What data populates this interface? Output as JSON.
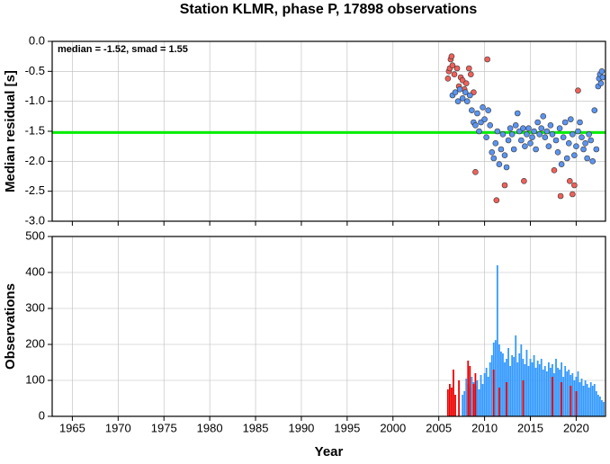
{
  "chart_data": [
    {
      "type": "scatter",
      "title": "Station KLMR, phase P, 17898 observations",
      "y_label": "Median residual [s]",
      "annotation": "median = -1.52, smad = 1.55",
      "median_line": -1.52,
      "median_color": "#00ee00",
      "xlim": [
        1962.8,
        2023.2
      ],
      "xticks": [
        1965,
        1970,
        1975,
        1980,
        1985,
        1990,
        1995,
        2000,
        2005,
        2010,
        2015,
        2020
      ],
      "ylim": [
        -3.0,
        0.0
      ],
      "yticks": [
        {
          "value": 0,
          "label": "0.0"
        },
        -0.5,
        {
          "value": -1,
          "label": "-1.0"
        },
        -1.5,
        {
          "value": -2,
          "label": "-2.0"
        },
        -2.5,
        {
          "value": -3,
          "label": "-3.0"
        }
      ],
      "grid": true,
      "series": [
        {
          "color": "#f0605a",
          "x": [
            2006.0,
            2006.1,
            2006.2,
            2006.3,
            2006.4,
            2006.5,
            2006.7,
            2007.0,
            2007.2,
            2007.4,
            2007.6,
            2007.8,
            2008.0,
            2008.3,
            2008.5,
            2008.8,
            2009.0,
            2010.3,
            2011.3,
            2012.2,
            2014.3,
            2017.6,
            2018.3,
            2019.3,
            2019.6,
            2019.8,
            2020.2
          ],
          "values": [
            -0.62,
            -0.5,
            -0.45,
            -0.3,
            -0.25,
            -0.4,
            -0.55,
            -0.45,
            -0.75,
            -0.6,
            -0.65,
            -0.8,
            -0.7,
            -0.45,
            -0.55,
            -0.85,
            -2.18,
            -0.3,
            -2.65,
            -2.4,
            -2.33,
            -2.15,
            -2.58,
            -2.33,
            -2.55,
            -2.4,
            -0.82
          ]
        },
        {
          "color": "#5b94f0",
          "x": [
            2006.5,
            2006.8,
            2007.1,
            2007.3,
            2007.6,
            2007.9,
            2008.1,
            2008.4,
            2008.6,
            2008.8,
            2009.0,
            2009.2,
            2009.4,
            2009.6,
            2009.8,
            2010.0,
            2010.2,
            2010.4,
            2010.6,
            2010.8,
            2011.0,
            2011.2,
            2011.4,
            2011.6,
            2011.8,
            2012.0,
            2012.2,
            2012.4,
            2012.6,
            2012.8,
            2013.0,
            2013.2,
            2013.4,
            2013.6,
            2013.8,
            2014.0,
            2014.2,
            2014.4,
            2014.6,
            2014.8,
            2015.0,
            2015.2,
            2015.4,
            2015.6,
            2015.8,
            2016.0,
            2016.2,
            2016.4,
            2016.6,
            2016.8,
            2017.0,
            2017.2,
            2017.4,
            2017.8,
            2018.0,
            2018.2,
            2018.4,
            2018.6,
            2018.8,
            2019.0,
            2019.2,
            2019.4,
            2019.6,
            2019.8,
            2020.0,
            2020.2,
            2020.4,
            2020.6,
            2020.8,
            2021.0,
            2021.2,
            2021.4,
            2021.6,
            2021.8,
            2022.0,
            2022.2,
            2022.4,
            2022.5,
            2022.6,
            2022.7,
            2022.8,
            2022.9
          ],
          "values": [
            -0.9,
            -0.85,
            -1.0,
            -0.8,
            -0.95,
            -0.85,
            -1.0,
            -0.9,
            -1.15,
            -1.35,
            -1.4,
            -1.2,
            -1.5,
            -1.35,
            -1.1,
            -1.3,
            -1.6,
            -1.15,
            -1.4,
            -1.85,
            -1.95,
            -1.7,
            -1.5,
            -2.05,
            -1.8,
            -1.55,
            -1.9,
            -2.1,
            -1.65,
            -1.45,
            -1.55,
            -1.8,
            -1.4,
            -1.2,
            -1.5,
            -1.65,
            -1.45,
            -1.75,
            -1.55,
            -1.45,
            -1.7,
            -1.6,
            -1.5,
            -1.8,
            -1.35,
            -1.55,
            -1.45,
            -1.25,
            -1.6,
            -1.5,
            -1.75,
            -1.4,
            -1.55,
            -1.65,
            -1.85,
            -1.45,
            -2.05,
            -1.6,
            -1.35,
            -1.95,
            -1.7,
            -1.3,
            -1.55,
            -1.9,
            -1.75,
            -1.5,
            -1.35,
            -1.6,
            -1.8,
            -1.7,
            -1.95,
            -1.55,
            -1.65,
            -2.0,
            -1.15,
            -1.8,
            -0.75,
            -0.62,
            -0.55,
            -0.7,
            -0.5,
            -0.6
          ]
        }
      ]
    },
    {
      "type": "bar",
      "y_label": "Observations",
      "x_label": "Year",
      "xlim": [
        1962.8,
        2023.2
      ],
      "xticks": [
        1965,
        1970,
        1975,
        1980,
        1985,
        1990,
        1995,
        2000,
        2005,
        2010,
        2015,
        2020
      ],
      "ylim": [
        0,
        500
      ],
      "yticks": [
        0,
        100,
        200,
        300,
        400,
        500
      ],
      "grid": true,
      "series": [
        {
          "color": "#3399ff",
          "x": [
            2007.6,
            2007.8,
            2008.0,
            2008.2,
            2008.4,
            2008.6,
            2008.8,
            2009.0,
            2009.2,
            2009.4,
            2009.6,
            2009.8,
            2010.0,
            2010.2,
            2010.4,
            2010.6,
            2010.8,
            2011.0,
            2011.2,
            2011.4,
            2011.6,
            2011.8,
            2012.0,
            2012.2,
            2012.4,
            2012.6,
            2012.8,
            2013.0,
            2013.2,
            2013.4,
            2013.6,
            2013.8,
            2014.0,
            2014.2,
            2014.4,
            2014.6,
            2014.8,
            2015.0,
            2015.2,
            2015.4,
            2015.6,
            2015.8,
            2016.0,
            2016.2,
            2016.4,
            2016.6,
            2016.8,
            2017.0,
            2017.2,
            2017.4,
            2017.6,
            2017.8,
            2018.0,
            2018.2,
            2018.4,
            2018.6,
            2018.8,
            2019.0,
            2019.2,
            2019.4,
            2019.6,
            2019.8,
            2020.0,
            2020.2,
            2020.4,
            2020.6,
            2020.8,
            2021.0,
            2021.2,
            2021.4,
            2021.6,
            2021.8,
            2022.0,
            2022.2,
            2022.4,
            2022.6,
            2022.8,
            2023.0
          ],
          "values": [
            60,
            70,
            105,
            90,
            80,
            110,
            95,
            85,
            100,
            75,
            115,
            90,
            120,
            135,
            110,
            150,
            170,
            205,
            212,
            420,
            200,
            180,
            175,
            150,
            160,
            190,
            140,
            170,
            165,
            225,
            150,
            175,
            200,
            160,
            145,
            185,
            140,
            160,
            150,
            170,
            135,
            155,
            145,
            160,
            130,
            140,
            125,
            150,
            135,
            145,
            120,
            160,
            135,
            130,
            150,
            110,
            140,
            125,
            130,
            115,
            120,
            100,
            110,
            125,
            95,
            105,
            85,
            100,
            90,
            80,
            95,
            85,
            90,
            70,
            60,
            55,
            45,
            40
          ]
        },
        {
          "color": "#ee0000",
          "x": [
            2006.0,
            2006.2,
            2006.4,
            2006.6,
            2006.8,
            2007.2,
            2008.2,
            2008.4,
            2008.8,
            2009.0,
            2011.0,
            2011.6,
            2012.4,
            2014.2,
            2017.4,
            2018.4,
            2019.4,
            2020.0
          ],
          "values": [
            75,
            90,
            80,
            130,
            60,
            100,
            155,
            140,
            90,
            120,
            130,
            80,
            95,
            100,
            110,
            95,
            85,
            70
          ]
        }
      ]
    }
  ]
}
